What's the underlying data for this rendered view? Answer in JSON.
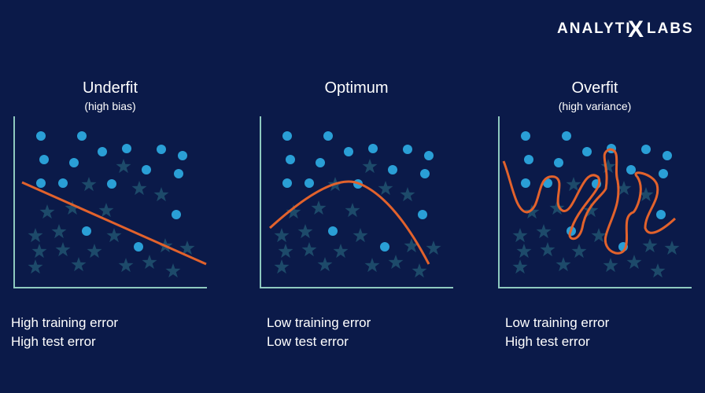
{
  "logo": {
    "prefix": "ANALYTI",
    "mark": "X",
    "suffix": "LABS"
  },
  "panels": [
    {
      "title": "Underfit",
      "subtitle": "(high bias)",
      "notes": [
        "High training error",
        "High test error"
      ]
    },
    {
      "title": "Optimum",
      "notes": [
        "Low training error",
        "Low test error"
      ]
    },
    {
      "title": "Overfit",
      "subtitle": "(high variance)",
      "notes": [
        "Low training error",
        "High test error"
      ]
    }
  ]
}
